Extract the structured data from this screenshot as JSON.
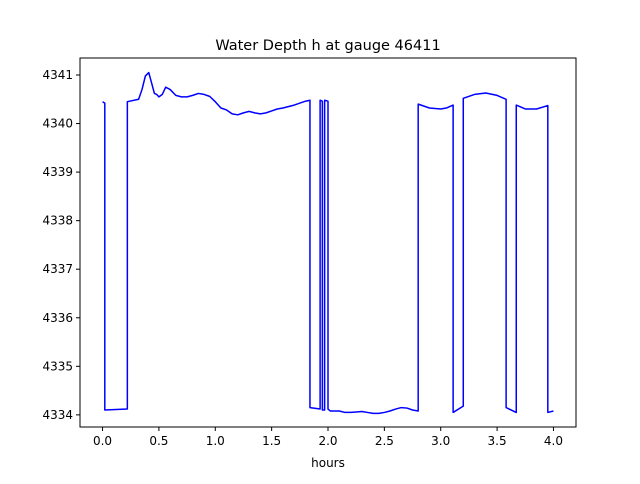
{
  "chart_data": {
    "type": "line",
    "title": "Water Depth h at gauge 46411",
    "xlabel": "hours",
    "ylabel": "",
    "xlim": [
      -0.2,
      4.2
    ],
    "ylim": [
      4333.75,
      4341.35
    ],
    "xticks": [
      0.0,
      0.5,
      1.0,
      1.5,
      2.0,
      2.5,
      3.0,
      3.5,
      4.0
    ],
    "xtick_labels": [
      "0.0",
      "0.5",
      "1.0",
      "1.5",
      "2.0",
      "2.5",
      "3.0",
      "3.5",
      "4.0"
    ],
    "yticks": [
      4334,
      4335,
      4336,
      4337,
      4338,
      4339,
      4340,
      4341
    ],
    "ytick_labels": [
      "4334",
      "4335",
      "4336",
      "4337",
      "4338",
      "4339",
      "4340",
      "4341"
    ],
    "grid": false,
    "legend": "none",
    "series": [
      {
        "color": "#0000ff",
        "x": [
          0.0,
          0.02,
          0.02,
          0.22,
          0.22,
          0.32,
          0.35,
          0.38,
          0.41,
          0.43,
          0.46,
          0.48,
          0.5,
          0.53,
          0.56,
          0.6,
          0.65,
          0.7,
          0.75,
          0.8,
          0.85,
          0.9,
          0.95,
          1.0,
          1.05,
          1.1,
          1.15,
          1.2,
          1.25,
          1.3,
          1.35,
          1.4,
          1.45,
          1.5,
          1.55,
          1.6,
          1.7,
          1.8,
          1.84,
          1.84,
          1.93,
          1.93,
          1.95,
          1.95,
          1.97,
          1.97,
          2.0,
          2.0,
          2.02,
          2.05,
          2.1,
          2.15,
          2.2,
          2.25,
          2.3,
          2.35,
          2.4,
          2.45,
          2.5,
          2.55,
          2.6,
          2.65,
          2.7,
          2.75,
          2.8,
          2.8,
          2.9,
          3.0,
          3.05,
          3.11,
          3.11,
          3.2,
          3.2,
          3.3,
          3.4,
          3.5,
          3.58,
          3.58,
          3.67,
          3.67,
          3.75,
          3.85,
          3.95,
          3.95,
          4.0
        ],
        "y": [
          4340.45,
          4340.42,
          4334.1,
          4334.12,
          4340.45,
          4340.5,
          4340.7,
          4340.98,
          4341.05,
          4340.88,
          4340.62,
          4340.6,
          4340.55,
          4340.6,
          4340.75,
          4340.7,
          4340.58,
          4340.55,
          4340.55,
          4340.58,
          4340.62,
          4340.6,
          4340.56,
          4340.45,
          4340.32,
          4340.28,
          4340.2,
          4340.18,
          4340.22,
          4340.25,
          4340.22,
          4340.2,
          4340.22,
          4340.26,
          4340.3,
          4340.32,
          4340.38,
          4340.46,
          4340.48,
          4334.15,
          4334.12,
          4340.48,
          4340.46,
          4334.1,
          4334.1,
          4340.48,
          4340.46,
          4334.12,
          4334.08,
          4334.08,
          4334.08,
          4334.05,
          4334.05,
          4334.06,
          4334.07,
          4334.05,
          4334.03,
          4334.03,
          4334.05,
          4334.08,
          4334.12,
          4334.15,
          4334.14,
          4334.1,
          4334.08,
          4340.4,
          4340.32,
          4340.3,
          4340.32,
          4340.38,
          4334.05,
          4334.18,
          4340.52,
          4340.6,
          4340.63,
          4340.58,
          4340.5,
          4334.15,
          4334.05,
          4340.38,
          4340.3,
          4340.3,
          4340.37,
          4334.05,
          4334.08
        ]
      }
    ]
  }
}
